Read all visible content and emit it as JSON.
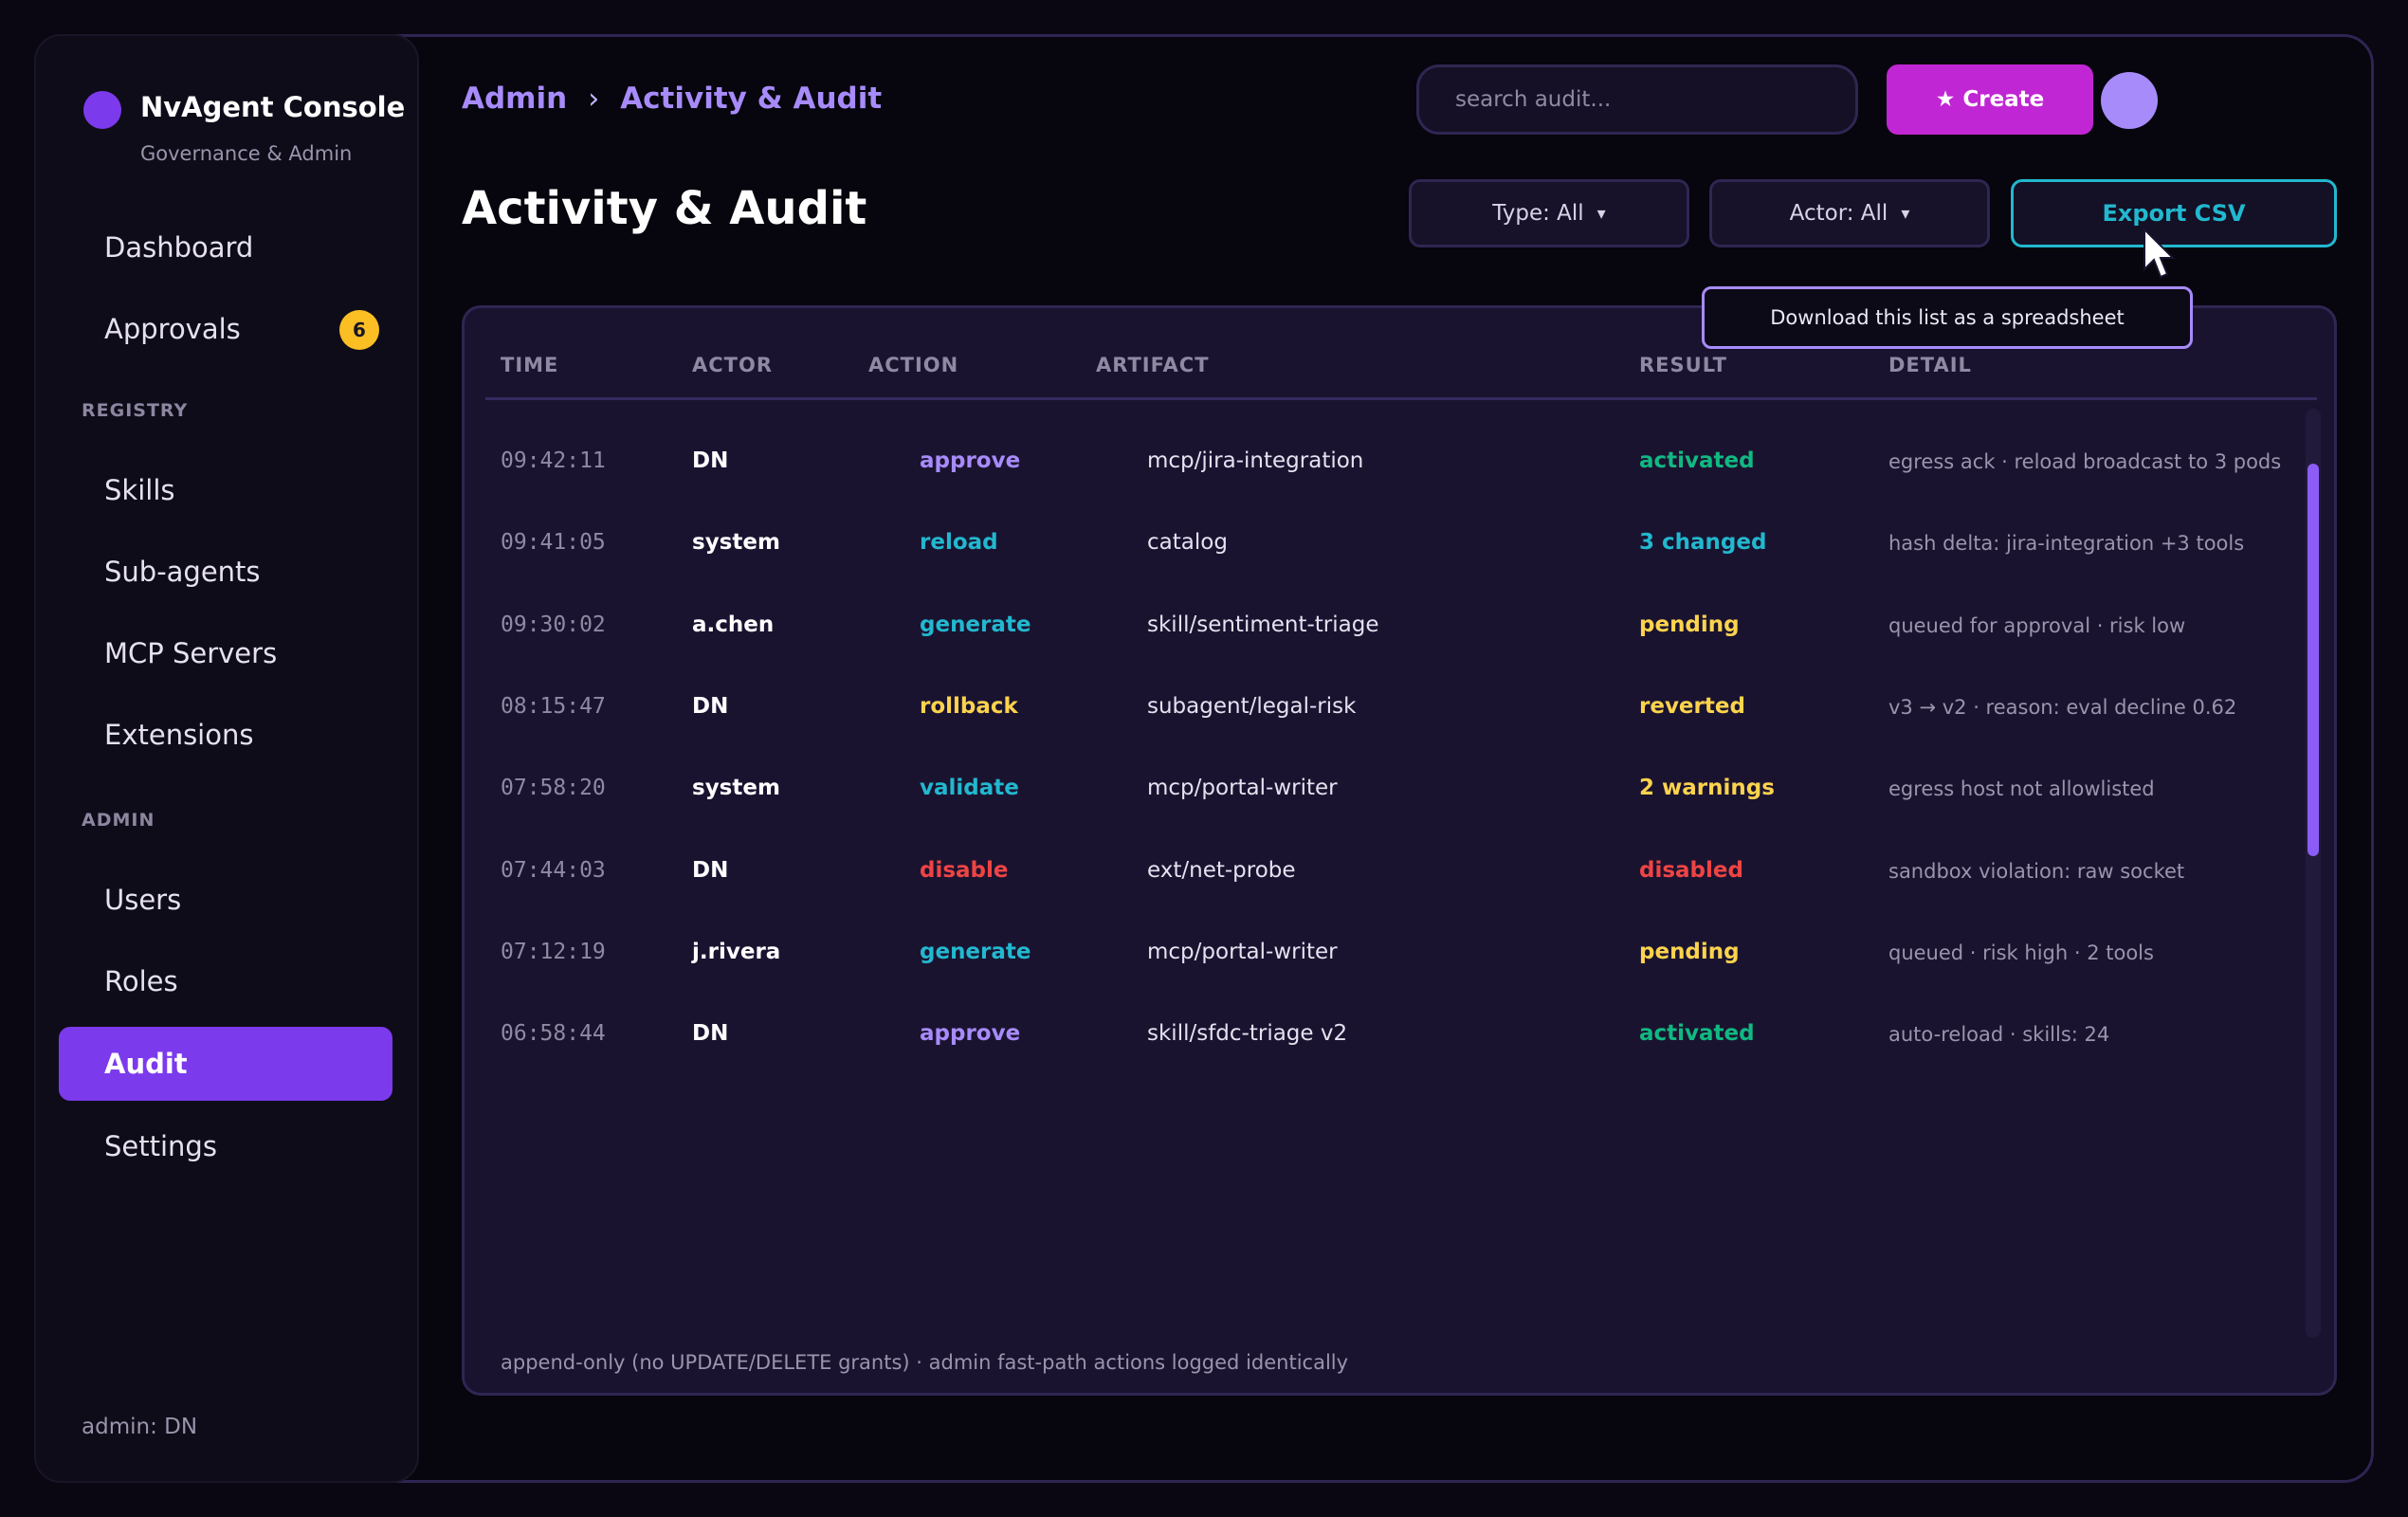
{
  "app": {
    "title": "NvAgent Console",
    "subtitle": "Governance & Admin"
  },
  "sidebar": {
    "items": [
      {
        "label": "Dashboard"
      },
      {
        "label": "Approvals",
        "badge": "6"
      }
    ],
    "registry_label": "REGISTRY",
    "registry_items": [
      {
        "label": "Skills"
      },
      {
        "label": "Sub-agents"
      },
      {
        "label": "MCP Servers"
      },
      {
        "label": "Extensions"
      }
    ],
    "admin_label": "ADMIN",
    "admin_items": [
      {
        "label": "Users"
      },
      {
        "label": "Roles"
      },
      {
        "label": "Audit",
        "active": true
      },
      {
        "label": "Settings"
      }
    ],
    "footer": "admin: DN"
  },
  "header": {
    "breadcrumb": [
      "Admin",
      "Activity & Audit"
    ],
    "breadcrumb_sep": "›",
    "search_placeholder": "search audit...",
    "create_label": "Create",
    "create_icon": "★"
  },
  "page": {
    "title": "Activity & Audit",
    "filters": [
      {
        "label": "Type: All",
        "icon": "▾"
      },
      {
        "label": "Actor: All",
        "icon": "▾"
      }
    ],
    "export_label": "Export CSV",
    "tooltip": "Download this list as a spreadsheet"
  },
  "table": {
    "columns": [
      "TIME",
      "ACTOR",
      "ACTION",
      "ARTIFACT",
      "RESULT",
      "DETAIL"
    ],
    "rows": [
      {
        "time": "09:42:11",
        "actor": "DN",
        "action": "approve",
        "artifact": "mcp/jira-integration",
        "result": "activated",
        "detail": "egress ack · reload broadcast to 3 pods"
      },
      {
        "time": "09:41:05",
        "actor": "system",
        "action": "reload",
        "artifact": "catalog",
        "result": "3 changed",
        "detail": "hash delta: jira-integration +3 tools"
      },
      {
        "time": "09:30:02",
        "actor": "a.chen",
        "action": "generate",
        "artifact": "skill/sentiment-triage",
        "result": "pending",
        "detail": "queued for approval · risk low"
      },
      {
        "time": "08:15:47",
        "actor": "DN",
        "action": "rollback",
        "artifact": "subagent/legal-risk",
        "result": "reverted",
        "detail": "v3 → v2 · reason: eval decline 0.62"
      },
      {
        "time": "07:58:20",
        "actor": "system",
        "action": "validate",
        "artifact": "mcp/portal-writer",
        "result": "2 warnings",
        "detail": "egress host not allowlisted"
      },
      {
        "time": "07:44:03",
        "actor": "DN",
        "action": "disable",
        "artifact": "ext/net-probe",
        "result": "disabled",
        "detail": "sandbox violation: raw socket"
      },
      {
        "time": "07:12:19",
        "actor": "j.rivera",
        "action": "generate",
        "artifact": "mcp/portal-writer",
        "result": "pending",
        "detail": "queued · risk high · 2 tools"
      },
      {
        "time": "06:58:44",
        "actor": "DN",
        "action": "approve",
        "artifact": "skill/sfdc-triage v2",
        "result": "activated",
        "detail": "auto-reload · skills: 24"
      }
    ],
    "footnote": "append-only (no UPDATE/DELETE grants) · admin fast-path actions logged identically"
  },
  "colors": {
    "accent": "#7c3aed",
    "violet": "#a78bfa",
    "cyan": "#22b8cf",
    "green": "#10b981",
    "yellow": "#fcd34d",
    "red": "#ef4444",
    "magenta": "#c026d3"
  },
  "icons": {
    "brand": "brand-dot-icon",
    "cursor": "mouse-pointer-icon",
    "dropdown": "chevron-down-icon"
  }
}
